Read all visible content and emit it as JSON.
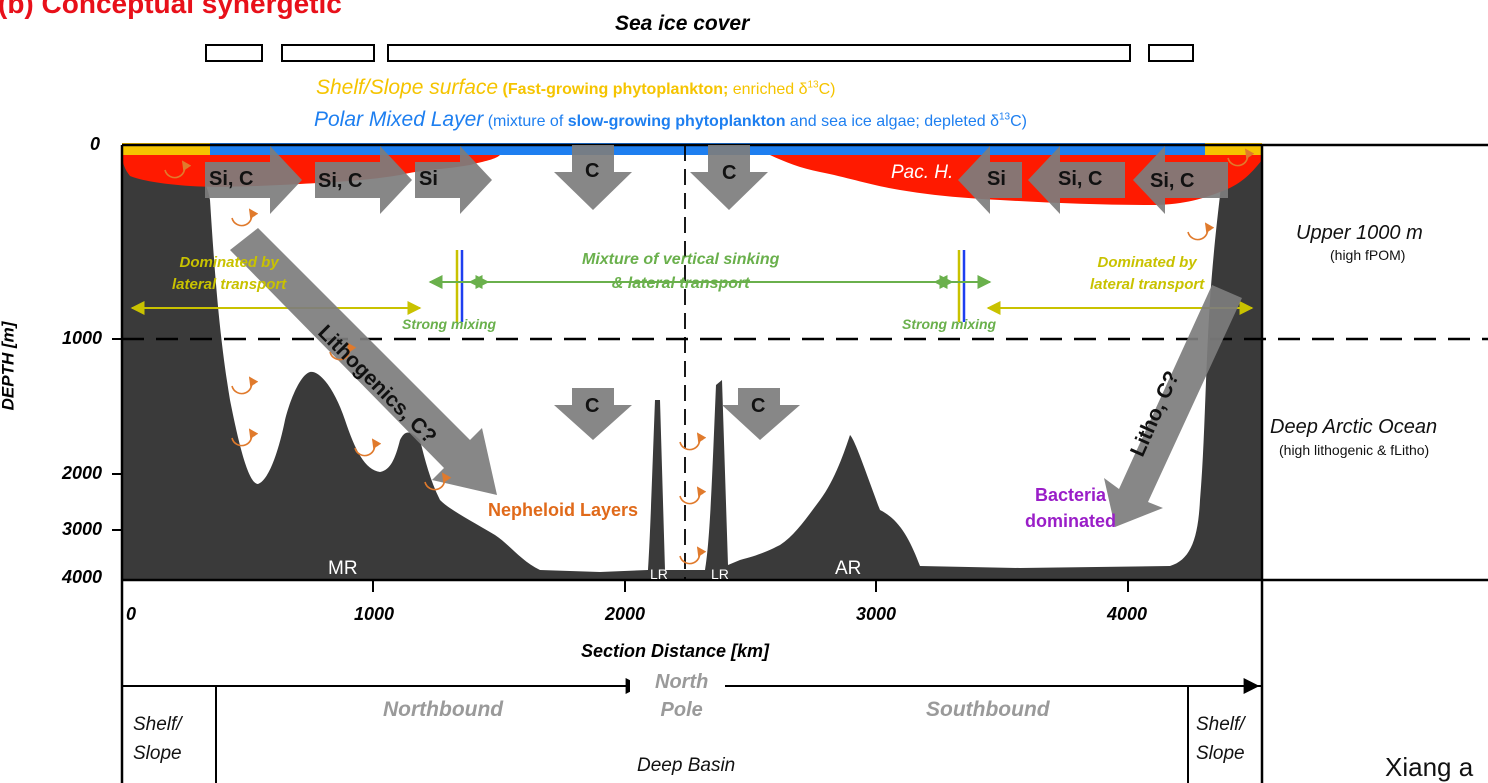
{
  "figure_label": "(b) Conceptual synergetic",
  "sea_ice_cover_label": "Sea ice cover",
  "shelf_surface": {
    "title": "Shelf/Slope surface",
    "paren_open": " (",
    "bold": "Fast-growing phytoplankton;",
    "rest": " enriched δ",
    "sup": "13",
    "tail": "C)"
  },
  "polar_mixed_layer": {
    "title": "Polar Mixed Layer",
    "pre": " (mixture of ",
    "bold": "slow-growing phytoplankton",
    "rest": " and sea ice algae; depleted δ",
    "sup": "13",
    "tail": "C)"
  },
  "depth_axis": {
    "label": "DEPTH [m]",
    "ticks": [
      "0",
      "1000",
      "2000",
      "3000",
      "4000"
    ]
  },
  "distance_axis": {
    "label": "Section Distance [km]",
    "ticks": [
      "0",
      "1000",
      "2000",
      "3000",
      "4000"
    ]
  },
  "arrows": {
    "si_c": "Si, C",
    "si": "Si",
    "c": "C",
    "lithogenics": "Lithogenics, C?",
    "litho": "Litho, C?"
  },
  "pac_h": "Pac. H.",
  "dominated_left": [
    "Dominated by",
    "lateral transport"
  ],
  "dominated_right": [
    "Dominated by",
    "lateral transport"
  ],
  "mixture": [
    "Mixture of vertical sinking",
    "& lateral transport"
  ],
  "strong_mixing": "Strong mixing",
  "nepheloid": "Nepheloid Layers",
  "bacteria": [
    "Bacteria",
    "dominated"
  ],
  "ridges": {
    "mr": "MR",
    "lr": "LR",
    "ar": "AR"
  },
  "right_panel": {
    "upper_title": "Upper 1000 m",
    "upper_sub": "(high fPOM)",
    "deep_title": "Deep Arctic Ocean",
    "deep_sub": "(high lithogenic & fLitho)"
  },
  "bottom_table": {
    "north_pole": [
      "North",
      "Pole"
    ],
    "northbound": "Northbound",
    "southbound": "Southbound",
    "shelf_slope": [
      "Shelf/",
      "Slope"
    ],
    "deep_basin": "Deep Basin"
  },
  "citation": "Xiang a",
  "colors": {
    "label_red": "#e8101a",
    "shelf_yellow": "#f5c400",
    "pml_blue": "#1e7ff0",
    "pac_red": "#ff1a00",
    "topo_dark": "#3a3a3a",
    "arrow_gray": "#7d7d7d",
    "lateral_yellow": "#c9c200",
    "mix_green": "#6ab04c",
    "swirl_orange": "#e07a2c",
    "nepheloid_orange": "#e06a1a",
    "bacteria_purple": "#9a1ec8",
    "bound_gray": "#9a9a9a"
  }
}
